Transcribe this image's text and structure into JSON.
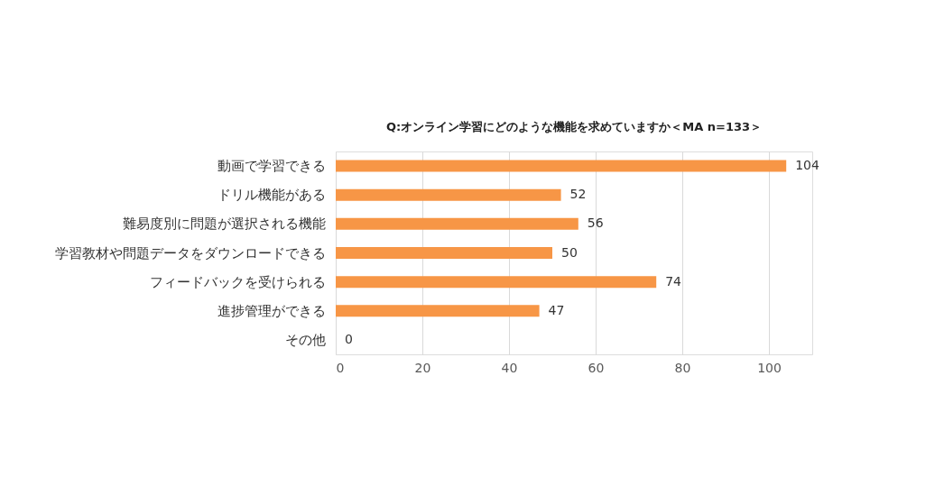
{
  "chart_data": {
    "type": "bar",
    "orientation": "horizontal",
    "title": "Q:オンライン学習にどのような機能を求めていますか＜MA n=133＞",
    "categories": [
      "動画で学習できる",
      "ドリル機能がある",
      "難易度別に問題が選択される機能",
      "学習教材や問題データをダウンロードできる",
      "フィードバックを受けられる",
      "進捗管理ができる",
      "その他"
    ],
    "values": [
      104,
      52,
      56,
      50,
      74,
      47,
      0
    ],
    "color": "#f79646",
    "xlim": [
      0,
      110
    ],
    "xticks": [
      0,
      20,
      40,
      60,
      80,
      100
    ],
    "grid": "x",
    "data_labels": true
  }
}
